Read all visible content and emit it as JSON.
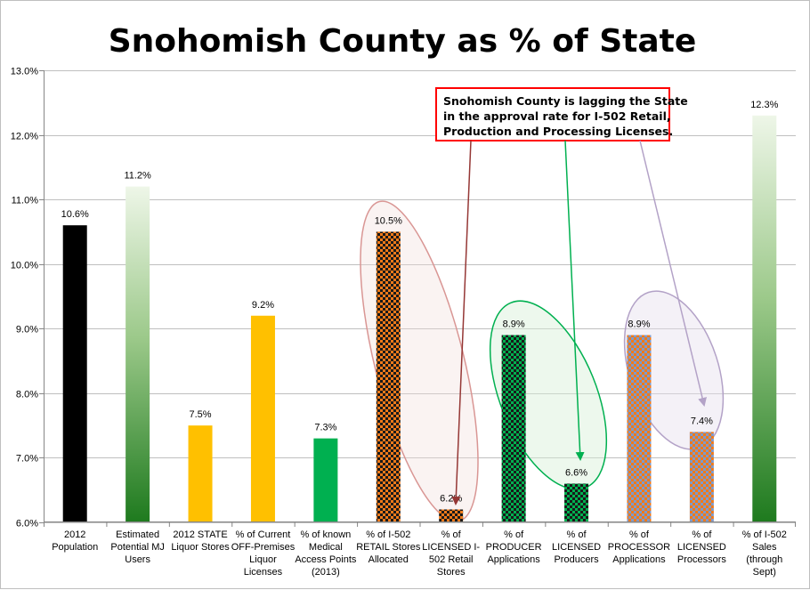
{
  "colors": {
    "black": "#000000",
    "gold": "#ffc000",
    "green": "#00b050",
    "orange": "#f07a1a",
    "grid": "#bfbfbf",
    "annotation_border": "#ff0000",
    "arrow_red": "#953735",
    "arrow_green": "#00b050",
    "arrow_purple": "#b3a2c7",
    "ellipse_red": "#d99694",
    "ellipse_green": "#00b050",
    "ellipse_purple": "#b3a2c7"
  },
  "chart_data": {
    "type": "bar",
    "title": "Snohomish County as % of State",
    "ylim": [
      6.0,
      13.0
    ],
    "yticks": [
      "6.0%",
      "7.0%",
      "8.0%",
      "9.0%",
      "10.0%",
      "11.0%",
      "12.0%",
      "13.0%"
    ],
    "grid": true,
    "legend": "none",
    "categories": [
      [
        "2012",
        "Population"
      ],
      [
        "Estimated",
        "Potential MJ",
        "Users"
      ],
      [
        "2012 STATE",
        "Liquor Stores"
      ],
      [
        "% of Current",
        "OFF-Premises",
        "Liquor",
        "Licenses"
      ],
      [
        "% of known",
        "Medical",
        "Access Points",
        "(2013)"
      ],
      [
        "% of I-502",
        "RETAIL Stores",
        "Allocated"
      ],
      [
        "% of",
        "LICENSED I-",
        "502 Retail",
        "Stores"
      ],
      [
        "% of",
        "PRODUCER",
        "Applications"
      ],
      [
        "% of",
        "LICENSED",
        "Producers"
      ],
      [
        "% of",
        "PROCESSOR",
        "Applications"
      ],
      [
        "% of",
        "LICENSED",
        "Processors"
      ],
      [
        "% of I-502",
        "Sales",
        "(through",
        "Sept)"
      ]
    ],
    "values": [
      10.6,
      11.2,
      7.5,
      9.2,
      7.3,
      10.5,
      6.2,
      8.9,
      6.6,
      8.9,
      7.4,
      12.3
    ],
    "data_labels": [
      "10.6%",
      "11.2%",
      "7.5%",
      "9.2%",
      "7.3%",
      "10.5%",
      "6.2%",
      "8.9%",
      "6.6%",
      "8.9%",
      "7.4%",
      "12.3%"
    ],
    "bar_fills": [
      "solid-black",
      "gradient-green",
      "solid-gold",
      "solid-gold",
      "solid-green",
      "checker-orange",
      "checker-orange",
      "checker-green",
      "checker-green",
      "weave-orange-blue",
      "weave-orange-blue",
      "gradient-green"
    ],
    "annotation": {
      "lines": [
        "Snohomish County is lagging the State",
        "in the approval rate for I-502 Retail,",
        "Production and Processing Licenses."
      ]
    }
  }
}
